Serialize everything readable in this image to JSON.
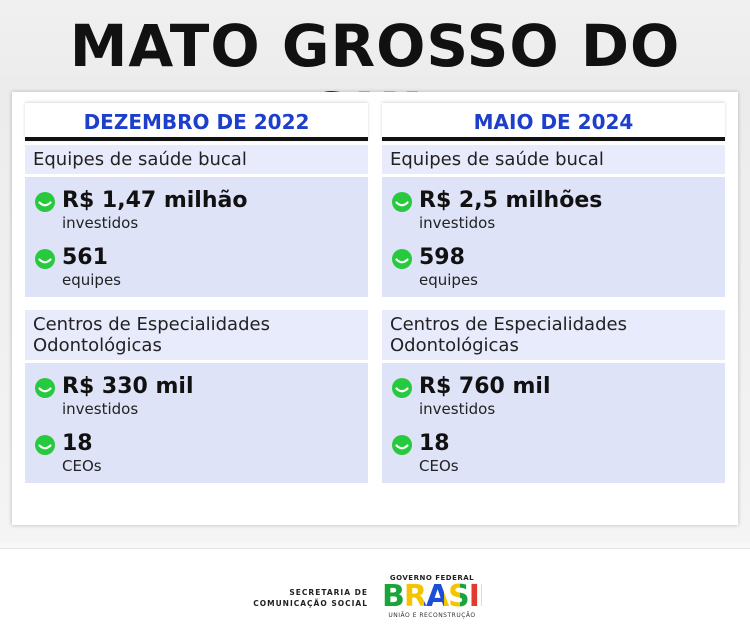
{
  "title": "MATO GROSSO DO SUL",
  "columns": [
    {
      "header": "DEZEMBRO DE 2022",
      "sections": [
        {
          "label": "Equipes de saúde bucal",
          "items": [
            {
              "value": "R$ 1,47 milhão",
              "caption": "investidos"
            },
            {
              "value": "561",
              "caption": "equipes"
            }
          ]
        },
        {
          "label": "Centros de Especialidades Odontológicas",
          "items": [
            {
              "value": "R$ 330 mil",
              "caption": "investidos"
            },
            {
              "value": "18",
              "caption": "CEOs"
            }
          ]
        }
      ]
    },
    {
      "header": "MAIO DE 2024",
      "sections": [
        {
          "label": "Equipes de saúde bucal",
          "items": [
            {
              "value": "R$ 2,5 milhões",
              "caption": "investidos"
            },
            {
              "value": "598",
              "caption": "equipes"
            }
          ]
        },
        {
          "label": "Centros de Especialidades Odontológicas",
          "items": [
            {
              "value": "R$ 760 mil",
              "caption": "investidos"
            },
            {
              "value": "18",
              "caption": "CEOs"
            }
          ]
        }
      ]
    }
  ],
  "footer": {
    "secretaria": [
      "SECRETARIA DE",
      "COMUNICAÇÃO SOCIAL"
    ],
    "logo": {
      "top": "GOVERNO FEDERAL",
      "brand": "BRASIL",
      "bottom": "UNIÃO E RECONSTRUÇÃO"
    }
  }
}
